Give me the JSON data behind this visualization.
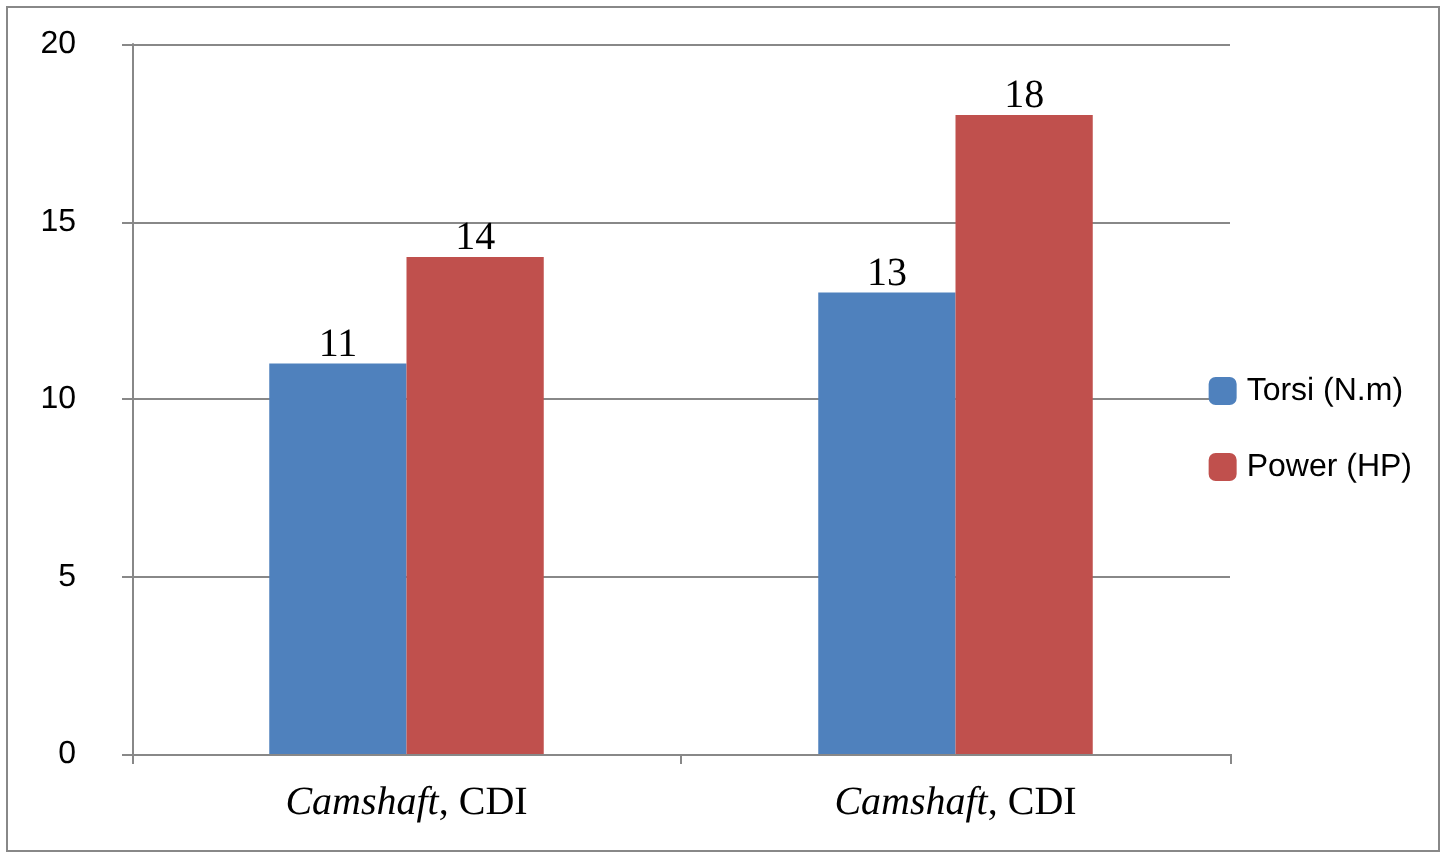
{
  "chart_data": {
    "type": "bar",
    "categories": [
      "Camshaft, CDI",
      "Camshaft, CDI"
    ],
    "series": [
      {
        "name": "Torsi (N.m)",
        "color": "#4f81bd",
        "values": [
          11,
          13
        ]
      },
      {
        "name": "Power (HP)",
        "color": "#c0504d",
        "values": [
          14,
          18
        ]
      }
    ],
    "ylim": [
      0,
      20
    ],
    "yticks": [
      0,
      5,
      10,
      15,
      20
    ],
    "grid": "y",
    "legend": "right",
    "data_labels": true
  }
}
